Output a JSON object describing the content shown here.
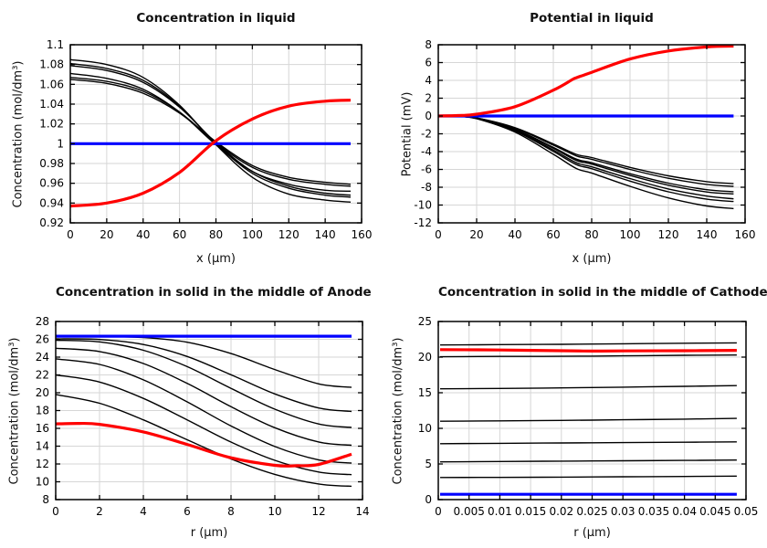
{
  "figure": {
    "background": "#ffffff"
  },
  "colors": {
    "black": "#000000",
    "red": "#ff0000",
    "blue": "#0000ff",
    "grid": "#d6d6d6",
    "axis": "#000000",
    "text": "#111111"
  },
  "chart_data": [
    {
      "id": "concentration-in-liquid",
      "type": "line",
      "title": "Concentration in liquid",
      "xlabel": "x (μm)",
      "ylabel": "Concentration (mol/dm³)",
      "xlim": [
        0,
        160
      ],
      "ylim": [
        0.92,
        1.1
      ],
      "grid": true,
      "legend": "none",
      "xtick_values": [
        0,
        20,
        40,
        60,
        80,
        100,
        120,
        140,
        160
      ],
      "xtick_labels": [
        "0",
        "20",
        "40",
        "60",
        "80",
        "100",
        "120",
        "140",
        "160"
      ],
      "ytick_values": [
        0.92,
        0.94,
        0.96,
        0.98,
        1,
        1.02,
        1.04,
        1.06,
        1.08,
        1.1
      ],
      "ytick_labels": [
        "0.92",
        "0.94",
        "0.96",
        "0.98",
        "1",
        "1.02",
        "1.04",
        "1.06",
        "1.08",
        "1.1"
      ],
      "series": [
        {
          "color": "black",
          "width": 1.4,
          "x": [
            0,
            20,
            40,
            60,
            80,
            100,
            120,
            140,
            154
          ],
          "y": [
            1.085,
            1.08,
            1.067,
            1.039,
            0.999,
            0.966,
            0.949,
            0.943,
            0.941
          ]
        },
        {
          "color": "black",
          "width": 1.4,
          "x": [
            0,
            20,
            40,
            60,
            80,
            100,
            120,
            140,
            154
          ],
          "y": [
            1.081,
            1.076,
            1.064,
            1.038,
            1.0,
            0.97,
            0.955,
            0.948,
            0.946
          ]
        },
        {
          "color": "black",
          "width": 1.4,
          "x": [
            0,
            20,
            40,
            60,
            80,
            100,
            120,
            140,
            154
          ],
          "y": [
            1.079,
            1.074,
            1.062,
            1.037,
            1.001,
            0.972,
            0.957,
            0.95,
            0.948
          ]
        },
        {
          "color": "black",
          "width": 1.4,
          "x": [
            0,
            20,
            40,
            60,
            80,
            100,
            120,
            140,
            154
          ],
          "y": [
            1.071,
            1.066,
            1.055,
            1.032,
            0.999,
            0.972,
            0.959,
            0.953,
            0.952
          ]
        },
        {
          "color": "black",
          "width": 1.4,
          "x": [
            0,
            20,
            40,
            60,
            80,
            100,
            120,
            140,
            154
          ],
          "y": [
            1.067,
            1.063,
            1.053,
            1.032,
            1.001,
            0.976,
            0.964,
            0.959,
            0.957
          ]
        },
        {
          "color": "black",
          "width": 1.4,
          "x": [
            0,
            20,
            40,
            60,
            80,
            100,
            120,
            140,
            154
          ],
          "y": [
            1.065,
            1.061,
            1.051,
            1.031,
            1.002,
            0.978,
            0.966,
            0.961,
            0.959
          ]
        },
        {
          "color": "blue",
          "width": 3.2,
          "x": [
            0,
            154
          ],
          "y": [
            1,
            1
          ]
        },
        {
          "color": "red",
          "width": 3.2,
          "x": [
            0,
            20,
            40,
            60,
            80,
            100,
            120,
            140,
            154
          ],
          "y": [
            0.937,
            0.94,
            0.95,
            0.971,
            1.003,
            1.025,
            1.038,
            1.043,
            1.044
          ]
        }
      ]
    },
    {
      "id": "potential-in-liquid",
      "type": "line",
      "title": "Potential in liquid",
      "xlabel": "x (μm)",
      "ylabel": "Potential (mV)",
      "xlim": [
        0,
        160
      ],
      "ylim": [
        -12,
        8
      ],
      "grid": true,
      "legend": "none",
      "xtick_values": [
        0,
        20,
        40,
        60,
        80,
        100,
        120,
        140,
        160
      ],
      "xtick_labels": [
        "0",
        "20",
        "40",
        "60",
        "80",
        "100",
        "120",
        "140",
        "160"
      ],
      "ytick_values": [
        -12,
        -10,
        -8,
        -6,
        -4,
        -2,
        0,
        2,
        4,
        6,
        8
      ],
      "ytick_labels": [
        "-12",
        "-10",
        "-8",
        "-6",
        "-4",
        "-2",
        "0",
        "2",
        "4",
        "6",
        "8"
      ],
      "series": [
        {
          "color": "black",
          "width": 1.4,
          "x": [
            0,
            10,
            20,
            40,
            60,
            72,
            80,
            100,
            120,
            140,
            154
          ],
          "y": [
            0,
            -0.04,
            -0.22,
            -1.31,
            -3.14,
            -4.31,
            -4.67,
            -5.77,
            -6.72,
            -7.37,
            -7.6
          ]
        },
        {
          "color": "black",
          "width": 1.4,
          "x": [
            0,
            10,
            20,
            40,
            60,
            72,
            80,
            100,
            120,
            140,
            154
          ],
          "y": [
            0,
            -0.04,
            -0.23,
            -1.37,
            -3.27,
            -4.48,
            -4.86,
            -6.0,
            -6.99,
            -7.68,
            -7.9
          ]
        },
        {
          "color": "black",
          "width": 1.4,
          "x": [
            0,
            10,
            20,
            40,
            60,
            72,
            80,
            100,
            120,
            140,
            154
          ],
          "y": [
            0,
            -0.04,
            -0.25,
            -1.48,
            -3.53,
            -4.84,
            -5.25,
            -6.48,
            -7.54,
            -8.28,
            -8.5
          ]
        },
        {
          "color": "black",
          "width": 1.4,
          "x": [
            0,
            10,
            20,
            40,
            60,
            72,
            80,
            100,
            120,
            140,
            154
          ],
          "y": [
            0,
            -0.04,
            -0.25,
            -1.52,
            -3.63,
            -4.99,
            -5.41,
            -6.68,
            -7.77,
            -8.53,
            -8.75
          ]
        },
        {
          "color": "black",
          "width": 1.4,
          "x": [
            0,
            10,
            20,
            40,
            60,
            72,
            80,
            100,
            120,
            140,
            154
          ],
          "y": [
            0,
            -0.04,
            -0.27,
            -1.6,
            -3.83,
            -5.25,
            -5.7,
            -7.03,
            -8.19,
            -8.99,
            -9.3
          ]
        },
        {
          "color": "black",
          "width": 1.4,
          "x": [
            0,
            10,
            20,
            40,
            60,
            72,
            80,
            100,
            120,
            140,
            154
          ],
          "y": [
            0,
            -0.05,
            -0.28,
            -1.67,
            -3.98,
            -5.46,
            -5.92,
            -7.31,
            -8.51,
            -9.34,
            -9.6
          ]
        },
        {
          "color": "black",
          "width": 1.4,
          "x": [
            0,
            10,
            20,
            40,
            60,
            72,
            80,
            100,
            120,
            140,
            154
          ],
          "y": [
            0,
            -0.05,
            -0.3,
            -1.8,
            -4.3,
            -5.9,
            -6.4,
            -7.9,
            -9.2,
            -10.1,
            -10.4
          ]
        },
        {
          "color": "blue",
          "width": 3.2,
          "x": [
            0,
            154
          ],
          "y": [
            0,
            0
          ]
        },
        {
          "color": "red",
          "width": 3.2,
          "x": [
            0,
            10,
            20,
            40,
            60,
            70,
            72,
            80,
            100,
            120,
            140,
            154
          ],
          "y": [
            0,
            0.05,
            0.2,
            1.05,
            2.9,
            4.1,
            4.3,
            4.9,
            6.4,
            7.3,
            7.75,
            7.85
          ]
        }
      ]
    },
    {
      "id": "concentration-solid-anode",
      "type": "line",
      "title": "Concentration in solid in the middle of Anode",
      "xlabel": "r (μm)",
      "ylabel": "Concentration (mol/dm³)",
      "xlim": [
        0,
        14
      ],
      "ylim": [
        8,
        28
      ],
      "grid": true,
      "legend": "none",
      "xtick_values": [
        0,
        2,
        4,
        6,
        8,
        10,
        12,
        14
      ],
      "xtick_labels": [
        "0",
        "2",
        "4",
        "6",
        "8",
        "10",
        "12",
        "14"
      ],
      "ytick_values": [
        8,
        10,
        12,
        14,
        16,
        18,
        20,
        22,
        24,
        26,
        28
      ],
      "ytick_labels": [
        "8",
        "10",
        "12",
        "14",
        "16",
        "18",
        "20",
        "22",
        "24",
        "26",
        "28"
      ],
      "series": [
        {
          "color": "black",
          "width": 1.4,
          "x": [
            0,
            2,
            4,
            6,
            8,
            10,
            12,
            13.5
          ],
          "y": [
            26.3,
            26.3,
            26.2,
            25.67,
            24.4,
            22.6,
            21.0,
            20.6
          ]
        },
        {
          "color": "black",
          "width": 1.4,
          "x": [
            0,
            2,
            4,
            6,
            8,
            10,
            12,
            13.5
          ],
          "y": [
            26.05,
            25.98,
            25.42,
            24.07,
            22.02,
            19.87,
            18.29,
            17.9
          ]
        },
        {
          "color": "black",
          "width": 1.4,
          "x": [
            0,
            2,
            4,
            6,
            8,
            10,
            12,
            13.5
          ],
          "y": [
            25.9,
            25.71,
            24.77,
            22.93,
            20.49,
            18.15,
            16.49,
            16.1
          ]
        },
        {
          "color": "black",
          "width": 1.4,
          "x": [
            0,
            2,
            4,
            6,
            8,
            10,
            12,
            13.5
          ],
          "y": [
            25.0,
            24.63,
            23.28,
            21.05,
            18.43,
            16.07,
            14.47,
            14.1
          ]
        },
        {
          "color": "black",
          "width": 1.4,
          "x": [
            0,
            2,
            4,
            6,
            8,
            10,
            12,
            13.5
          ],
          "y": [
            23.8,
            23.18,
            21.45,
            18.97,
            16.27,
            13.96,
            12.45,
            12.1
          ]
        },
        {
          "color": "black",
          "width": 1.4,
          "x": [
            0,
            2,
            4,
            6,
            8,
            10,
            12,
            13.5
          ],
          "y": [
            22.0,
            21.2,
            19.36,
            16.95,
            14.46,
            12.41,
            11.1,
            10.8
          ]
        },
        {
          "color": "black",
          "width": 1.4,
          "x": [
            0,
            2,
            4,
            6,
            8,
            10,
            12,
            13.5
          ],
          "y": [
            19.8,
            18.82,
            16.95,
            14.72,
            12.56,
            10.83,
            9.75,
            9.5
          ]
        },
        {
          "color": "blue",
          "width": 3.2,
          "x": [
            0,
            13.5
          ],
          "y": [
            26.35,
            26.35
          ]
        },
        {
          "color": "red",
          "width": 3.2,
          "x": [
            0,
            1,
            2,
            4,
            6,
            8,
            10,
            11,
            12,
            13.5
          ],
          "y": [
            16.5,
            16.55,
            16.45,
            15.6,
            14.2,
            12.7,
            11.85,
            11.8,
            11.95,
            13.1
          ]
        }
      ]
    },
    {
      "id": "concentration-solid-cathode",
      "type": "line",
      "title": "Concentration in solid in the middle of Cathode",
      "xlabel": "r (μm)",
      "ylabel": "Concentration (mol/dm³)",
      "xlim": [
        0,
        0.05
      ],
      "ylim": [
        0,
        25
      ],
      "grid": true,
      "legend": "none",
      "xtick_values": [
        0,
        0.005,
        0.01,
        0.015,
        0.02,
        0.025,
        0.03,
        0.035,
        0.04,
        0.045,
        0.05
      ],
      "xtick_labels": [
        "0",
        "0.005",
        "0.01",
        "0.015",
        "0.02",
        "0.025",
        "0.03",
        "0.035",
        "0.04",
        "0.045",
        "0.05"
      ],
      "ytick_values": [
        0,
        5,
        10,
        15,
        20,
        25
      ],
      "ytick_labels": [
        "0",
        "5",
        "10",
        "15",
        "20",
        "25"
      ],
      "series": [
        {
          "color": "black",
          "width": 1.4,
          "x": [
            0.0003,
            0.01,
            0.02,
            0.03,
            0.04,
            0.0485
          ],
          "y": [
            21.7,
            21.75,
            21.8,
            21.87,
            21.95,
            22.0
          ]
        },
        {
          "color": "black",
          "width": 1.4,
          "x": [
            0.0003,
            0.01,
            0.02,
            0.03,
            0.04,
            0.0485
          ],
          "y": [
            20.05,
            20.1,
            20.12,
            20.18,
            20.25,
            20.3
          ]
        },
        {
          "color": "black",
          "width": 1.4,
          "x": [
            0.0003,
            0.01,
            0.02,
            0.03,
            0.04,
            0.0485
          ],
          "y": [
            15.55,
            15.6,
            15.68,
            15.78,
            15.9,
            16.0
          ]
        },
        {
          "color": "black",
          "width": 1.4,
          "x": [
            0.0003,
            0.01,
            0.02,
            0.03,
            0.04,
            0.0485
          ],
          "y": [
            11.0,
            11.05,
            11.12,
            11.2,
            11.3,
            11.4
          ]
        },
        {
          "color": "black",
          "width": 1.4,
          "x": [
            0.0003,
            0.01,
            0.02,
            0.03,
            0.04,
            0.0485
          ],
          "y": [
            7.85,
            7.9,
            7.95,
            8.0,
            8.05,
            8.1
          ]
        },
        {
          "color": "black",
          "width": 1.4,
          "x": [
            0.0003,
            0.01,
            0.02,
            0.03,
            0.04,
            0.0485
          ],
          "y": [
            5.3,
            5.35,
            5.4,
            5.45,
            5.5,
            5.55
          ]
        },
        {
          "color": "black",
          "width": 1.4,
          "x": [
            0.0003,
            0.01,
            0.02,
            0.03,
            0.04,
            0.0485
          ],
          "y": [
            3.1,
            3.12,
            3.16,
            3.2,
            3.25,
            3.3
          ]
        },
        {
          "color": "blue",
          "width": 3.2,
          "x": [
            0.0003,
            0.0485
          ],
          "y": [
            0.75,
            0.75
          ]
        },
        {
          "color": "red",
          "width": 3.2,
          "x": [
            0.0003,
            0.01,
            0.02,
            0.025,
            0.03,
            0.04,
            0.0485
          ],
          "y": [
            21.05,
            21.0,
            20.9,
            20.85,
            20.87,
            20.9,
            20.95
          ]
        }
      ]
    }
  ]
}
